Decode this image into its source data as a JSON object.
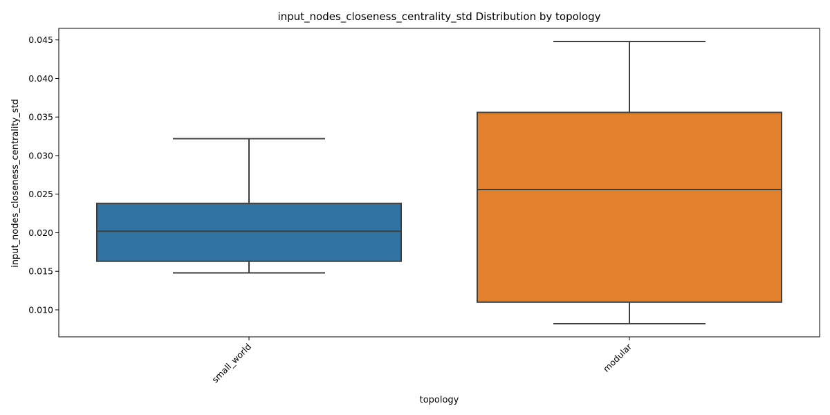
{
  "chart_data": {
    "type": "box",
    "title": "input_nodes_closeness_centrality_std Distribution by topology",
    "xlabel": "topology",
    "ylabel": "input_nodes_closeness_centrality_std",
    "ylim": [
      0.0065,
      0.0465
    ],
    "yticks": [
      0.01,
      0.015,
      0.02,
      0.025,
      0.03,
      0.035,
      0.04,
      0.045
    ],
    "ytick_labels": [
      "0.010",
      "0.015",
      "0.020",
      "0.025",
      "0.030",
      "0.035",
      "0.040",
      "0.045"
    ],
    "categories": [
      "small_world",
      "modular"
    ],
    "boxes": [
      {
        "category": "small_world",
        "whisker_low": 0.0148,
        "q1": 0.0163,
        "median": 0.0202,
        "q3": 0.0238,
        "whisker_high": 0.0322,
        "color": "#3274a1"
      },
      {
        "category": "modular",
        "whisker_low": 0.0082,
        "q1": 0.011,
        "median": 0.0256,
        "q3": 0.0356,
        "whisker_high": 0.0448,
        "color": "#e1812c"
      }
    ],
    "grid": false,
    "legend": "none",
    "line_color": "#3f3f3f"
  }
}
